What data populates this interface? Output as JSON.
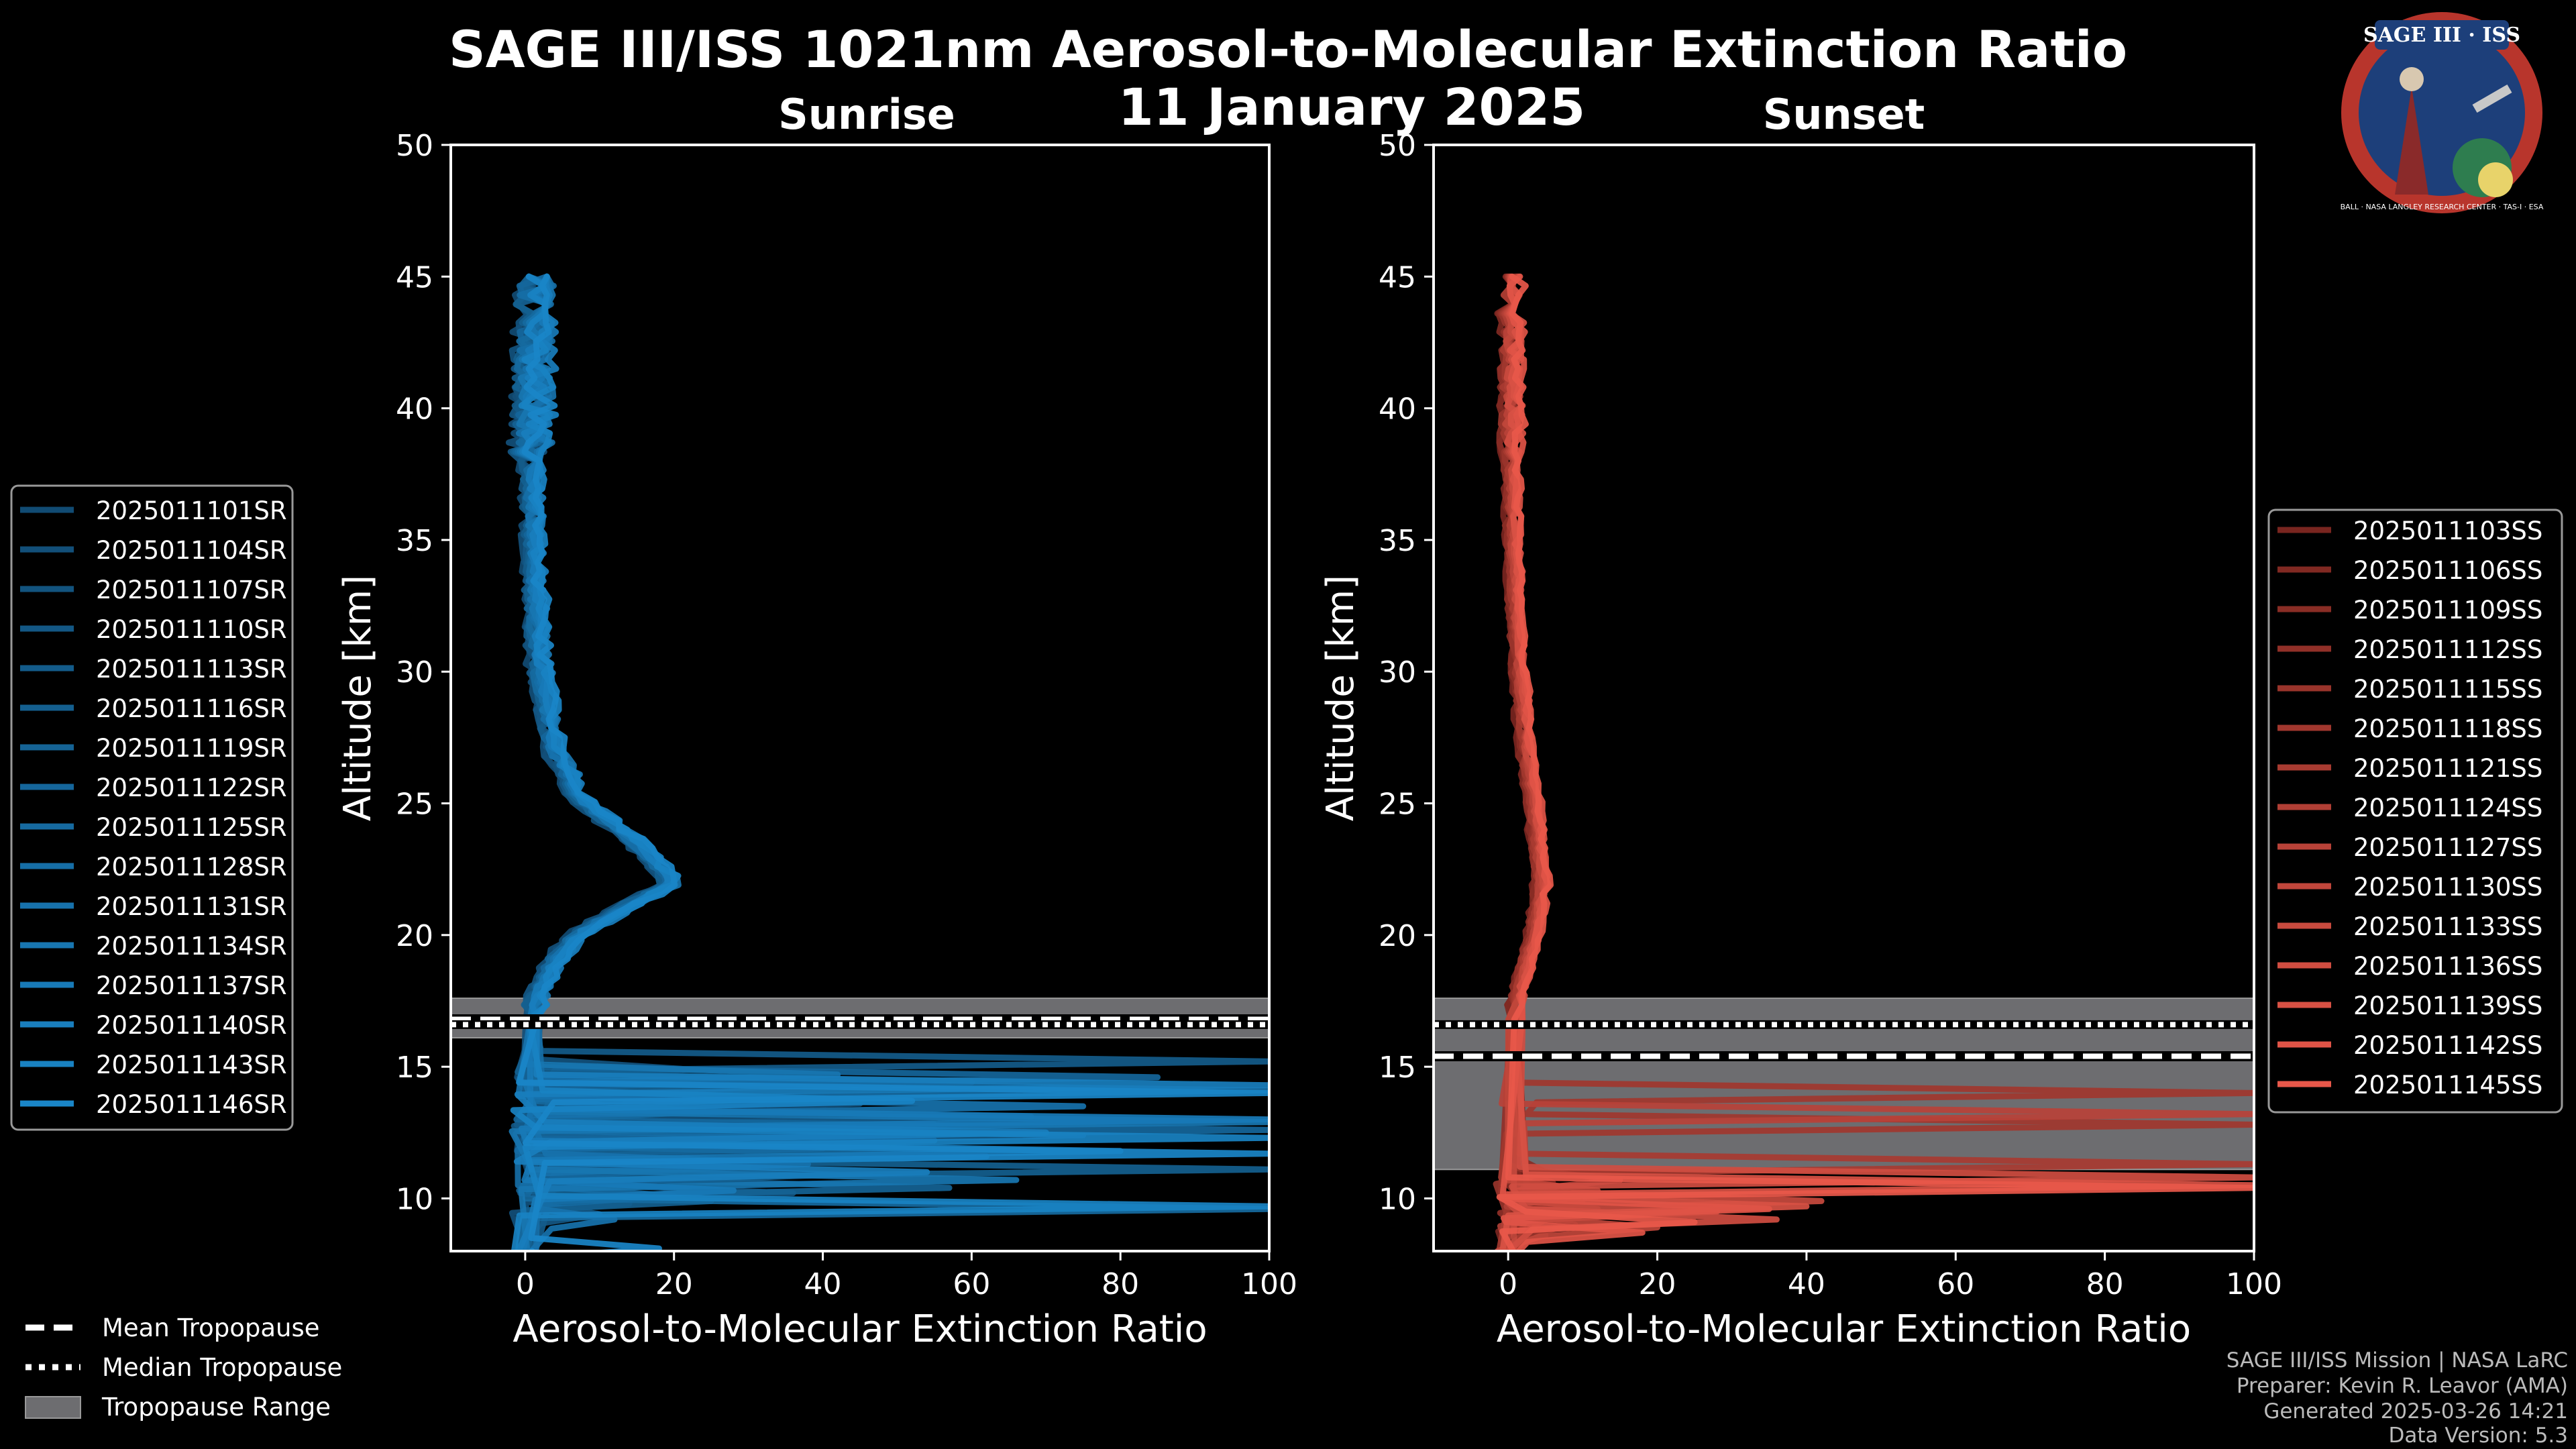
{
  "title_line1": "SAGE III/ISS 1021nm Aerosol-to-Molecular Extinction Ratio",
  "title_line2": "11 January 2025",
  "logo": {
    "text": "SAGE III · ISS",
    "ring_text": "BALL · NASA LANGLEY RESEARCH CENTER · TAS-I · ESA"
  },
  "footer": [
    "SAGE III/ISS Mission | NASA LaRC",
    "Preparer: Kevin R. Leavor (AMA)",
    "Generated 2025-03-26 14:21",
    "Data Version: 5.3"
  ],
  "tropopause_legend": {
    "mean": "Mean Tropopause",
    "median": "Median Tropopause",
    "range": "Tropopause Range"
  },
  "colors": {
    "sunrise": "#1a86c8",
    "sunset": "#e8584a",
    "range": "#6d6d70"
  },
  "chart_data": [
    {
      "type": "line",
      "title": "Sunrise",
      "xlabel": "Aerosol-to-Molecular Extinction Ratio",
      "ylabel": "Altitude [km]",
      "xlim": [
        -10,
        100
      ],
      "ylim": [
        8,
        50
      ],
      "xticks": [
        "0",
        "20",
        "40",
        "60",
        "80",
        "100"
      ],
      "yticks": [
        "10",
        "15",
        "20",
        "25",
        "30",
        "35",
        "40",
        "45",
        "50"
      ],
      "xtick_values": [
        0,
        20,
        40,
        60,
        80,
        100
      ],
      "ytick_values": [
        10,
        15,
        20,
        25,
        30,
        35,
        40,
        45,
        50
      ],
      "tropopause": {
        "mean": 16.8,
        "median": 16.6,
        "range": [
          16.1,
          17.6
        ]
      },
      "base_profile": {
        "alt": [
          45,
          42,
          38,
          34,
          30,
          27,
          25,
          23.5,
          22,
          21,
          20,
          19,
          18,
          17.2
        ],
        "ratio": [
          1.5,
          1.2,
          1.0,
          1.2,
          2.0,
          4.0,
          8.0,
          15.0,
          20.0,
          13.0,
          7.0,
          4.0,
          2.0,
          1.0
        ]
      },
      "series": [
        {
          "name": "2025011101SR",
          "spikes": [
            [
              14.2,
              28
            ],
            [
              12.1,
              18
            ],
            [
              10.6,
              9
            ]
          ]
        },
        {
          "name": "2025011104SR",
          "spikes": [
            [
              13.6,
              45
            ],
            [
              11.4,
              30
            ],
            [
              9.8,
              14
            ]
          ]
        },
        {
          "name": "2025011107SR",
          "spikes": [
            [
              14.9,
              22
            ],
            [
              12.8,
              55
            ],
            [
              10.2,
              36
            ]
          ]
        },
        {
          "name": "2025011110SR",
          "spikes": [
            [
              13.1,
              68
            ],
            [
              11.9,
              40
            ],
            [
              9.4,
              10
            ]
          ]
        },
        {
          "name": "2025011113SR",
          "spikes": [
            [
              15.2,
              100
            ],
            [
              12.4,
              75
            ],
            [
              10.9,
              42
            ]
          ]
        },
        {
          "name": "2025011116SR",
          "spikes": [
            [
              14.4,
              60
            ],
            [
              11.1,
              100
            ],
            [
              9.9,
              25
            ]
          ]
        },
        {
          "name": "2025011119SR",
          "spikes": [
            [
              13.8,
              35
            ],
            [
              12.0,
              48
            ],
            [
              10.4,
              57
            ]
          ]
        },
        {
          "name": "2025011122SR",
          "spikes": [
            [
              14.6,
              85
            ],
            [
              12.6,
              100
            ],
            [
              11.2,
              30
            ]
          ]
        },
        {
          "name": "2025011125SR",
          "spikes": [
            [
              13.3,
              24
            ],
            [
              11.6,
              62
            ],
            [
              9.6,
              100
            ]
          ]
        },
        {
          "name": "2025011128SR",
          "spikes": [
            [
              14.1,
              100
            ],
            [
              12.2,
              55
            ],
            [
              10.1,
              20
            ]
          ]
        },
        {
          "name": "2025011131SR",
          "spikes": [
            [
              13.5,
              75
            ],
            [
              11.3,
              38
            ],
            [
              9.2,
              12
            ]
          ]
        },
        {
          "name": "2025011134SR",
          "spikes": [
            [
              14.7,
              42
            ],
            [
              12.9,
              100
            ],
            [
              10.7,
              66
            ]
          ]
        },
        {
          "name": "2025011137SR",
          "spikes": [
            [
              13.0,
              100
            ],
            [
              11.8,
              80
            ],
            [
              10.3,
              28
            ]
          ]
        },
        {
          "name": "2025011140SR",
          "spikes": [
            [
              14.3,
              100
            ],
            [
              12.5,
              70
            ],
            [
              11.0,
              54
            ]
          ]
        },
        {
          "name": "2025011143SR",
          "spikes": [
            [
              13.7,
              52
            ],
            [
              12.3,
              100
            ],
            [
              9.7,
              100
            ]
          ]
        },
        {
          "name": "2025011146SR",
          "spikes": [
            [
              14.0,
              100
            ],
            [
              11.7,
              100
            ],
            [
              8.1,
              18
            ]
          ]
        }
      ]
    },
    {
      "type": "line",
      "title": "Sunset",
      "xlabel": "Aerosol-to-Molecular Extinction Ratio",
      "ylabel": "Altitude [km]",
      "xlim": [
        -10,
        100
      ],
      "ylim": [
        8,
        50
      ],
      "xticks": [
        "0",
        "20",
        "40",
        "60",
        "80",
        "100"
      ],
      "yticks": [
        "10",
        "15",
        "20",
        "25",
        "30",
        "35",
        "40",
        "45",
        "50"
      ],
      "xtick_values": [
        0,
        20,
        40,
        60,
        80,
        100
      ],
      "ytick_values": [
        10,
        15,
        20,
        25,
        30,
        35,
        40,
        45,
        50
      ],
      "tropopause": {
        "mean": 15.4,
        "median": 16.6,
        "range": [
          11.1,
          17.6
        ]
      },
      "base_profile": {
        "alt": [
          45,
          42,
          38,
          34,
          30,
          27,
          25,
          23.5,
          22,
          21,
          20,
          19,
          18,
          17.2
        ],
        "ratio": [
          0.5,
          0.5,
          0.5,
          0.8,
          1.5,
          2.5,
          3.5,
          4.0,
          4.5,
          4.0,
          3.5,
          2.5,
          1.5,
          1.0
        ]
      },
      "series": [
        {
          "name": "2025011103SS",
          "spikes": [
            [
              10.6,
              6
            ],
            [
              9.1,
              4
            ]
          ]
        },
        {
          "name": "2025011106SS",
          "spikes": [
            [
              10.2,
              8
            ],
            [
              8.8,
              3
            ]
          ]
        },
        {
          "name": "2025011109SS",
          "spikes": [
            [
              11.0,
              5
            ],
            [
              9.4,
              7
            ]
          ]
        },
        {
          "name": "2025011112SS",
          "spikes": [
            [
              9.8,
              10
            ],
            [
              8.6,
              5
            ]
          ]
        },
        {
          "name": "2025011115SS",
          "spikes": [
            [
              10.9,
              4
            ],
            [
              9.0,
              9
            ]
          ]
        },
        {
          "name": "2025011118SS",
          "spikes": [
            [
              14.0,
              100
            ],
            [
              12.8,
              100
            ],
            [
              10.4,
              6
            ]
          ]
        },
        {
          "name": "2025011121SS",
          "spikes": [
            [
              11.3,
              100
            ],
            [
              9.6,
              12
            ]
          ]
        },
        {
          "name": "2025011124SS",
          "spikes": [
            [
              10.7,
              15
            ],
            [
              9.3,
              6
            ]
          ]
        },
        {
          "name": "2025011127SS",
          "spikes": [
            [
              13.2,
              100
            ],
            [
              10.1,
              8
            ]
          ]
        },
        {
          "name": "2025011130SS",
          "spikes": [
            [
              10.3,
              12
            ],
            [
              8.9,
              20
            ]
          ]
        },
        {
          "name": "2025011133SS",
          "spikes": [
            [
              9.9,
              42
            ],
            [
              9.5,
              28
            ]
          ]
        },
        {
          "name": "2025011136SS",
          "spikes": [
            [
              10.8,
              100
            ],
            [
              9.2,
              36
            ]
          ]
        },
        {
          "name": "2025011139SS",
          "spikes": [
            [
              10.5,
              100
            ],
            [
              9.7,
              40
            ]
          ]
        },
        {
          "name": "2025011142SS",
          "spikes": [
            [
              9.6,
              35
            ],
            [
              8.7,
              18
            ]
          ]
        },
        {
          "name": "2025011145SS",
          "spikes": [
            [
              10.4,
              100
            ],
            [
              9.1,
              25
            ]
          ]
        }
      ]
    }
  ]
}
